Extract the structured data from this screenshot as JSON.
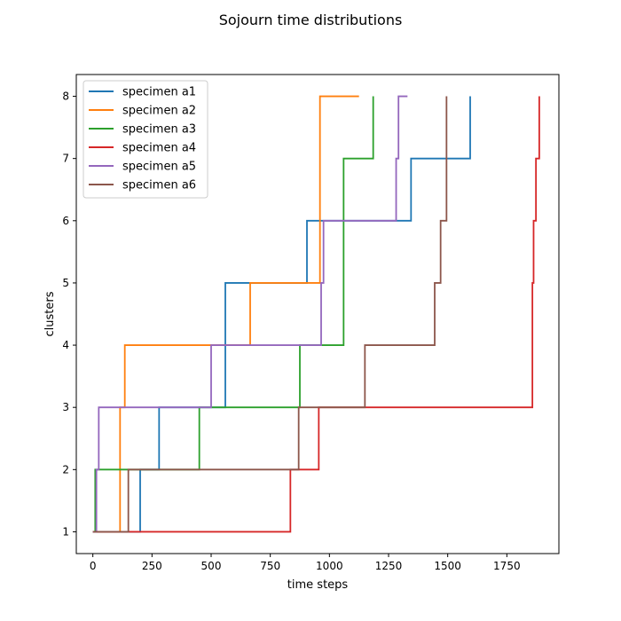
{
  "chart_data": {
    "type": "line",
    "step": "post",
    "title": "Sojourn time distributions",
    "xlabel": "time steps",
    "ylabel": "clusters",
    "xlim": [
      -70,
      1970
    ],
    "ylim": [
      0.65,
      8.35
    ],
    "xticks": [
      0,
      250,
      500,
      750,
      1000,
      1250,
      1500,
      1750
    ],
    "yticks": [
      1,
      2,
      3,
      4,
      5,
      6,
      7,
      8
    ],
    "grid": false,
    "legend_position": "top-left",
    "series": [
      {
        "name": "specimen a1",
        "color": "#1f77b4",
        "x": [
          0,
          200,
          280,
          560,
          905,
          1345,
          1595
        ],
        "y": [
          1,
          2,
          3,
          5,
          6,
          7,
          8
        ]
      },
      {
        "name": "specimen a2",
        "color": "#ff7f0e",
        "x": [
          0,
          115,
          135,
          665,
          960,
          1125
        ],
        "y": [
          1,
          3,
          4,
          5,
          8,
          8
        ]
      },
      {
        "name": "specimen a3",
        "color": "#2ca02c",
        "x": [
          0,
          10,
          450,
          875,
          1060,
          1185
        ],
        "y": [
          1,
          2,
          3,
          4,
          7,
          8
        ]
      },
      {
        "name": "specimen a4",
        "color": "#d62728",
        "x": [
          0,
          835,
          955,
          1858,
          1863,
          1873,
          1880,
          1887
        ],
        "y": [
          1,
          2,
          3,
          5,
          6,
          7,
          7,
          8
        ]
      },
      {
        "name": "specimen a5",
        "color": "#9467bd",
        "x": [
          0,
          15,
          25,
          500,
          965,
          975,
          1282,
          1292,
          1330
        ],
        "y": [
          1,
          2,
          3,
          4,
          5,
          6,
          7,
          8,
          8
        ]
      },
      {
        "name": "specimen a6",
        "color": "#8c564b",
        "x": [
          0,
          150,
          870,
          1150,
          1445,
          1470,
          1495
        ],
        "y": [
          1,
          2,
          3,
          4,
          5,
          6,
          8
        ]
      }
    ]
  }
}
